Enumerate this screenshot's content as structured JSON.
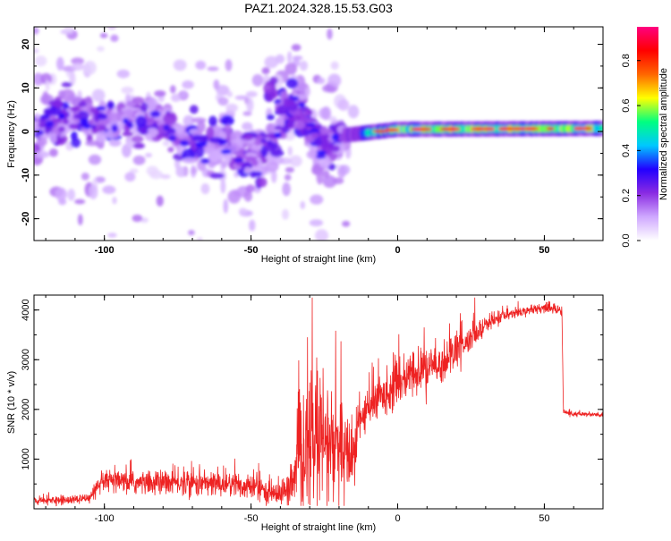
{
  "page": {
    "title": "PAZ1.2024.328.15.53.G03"
  },
  "chart_data": [
    {
      "type": "heatmap",
      "title": "PAZ1.2024.328.15.53.G03",
      "xlabel": "Height of straight line (km)",
      "ylabel": "Frequency (Hz)",
      "xlim": [
        -124,
        70
      ],
      "ylim": [
        -25,
        24
      ],
      "xticks_labeled": [
        -100,
        -50,
        0,
        50
      ],
      "yticks_labeled": [
        -20,
        -10,
        0,
        10,
        20
      ],
      "colorbar": {
        "label": "Normalized spectral amplitude",
        "range": [
          0,
          0.95
        ],
        "ticks": [
          0.0,
          0.2,
          0.4,
          0.6,
          0.8
        ],
        "tick_labels": [
          "0.0",
          "0.2",
          "0.4",
          "0.6",
          "0.8"
        ],
        "colormap": [
          "#ffffff",
          "#cfa8ff",
          "#8a2be2",
          "#2200ff",
          "#00c8ff",
          "#00ff80",
          "#ffff00",
          "#ff6600",
          "#ff0000",
          "#ff0080"
        ]
      },
      "ridge": {
        "description_values": [
          {
            "x": -120,
            "y": 3
          },
          {
            "x": -90,
            "y": 2
          },
          {
            "x": -60,
            "y": -3
          },
          {
            "x": -45,
            "y": -6
          },
          {
            "x": -35,
            "y": 7
          },
          {
            "x": -25,
            "y": -5
          },
          {
            "x": -20,
            "y": -1
          },
          {
            "x": 0,
            "y": 0.5
          },
          {
            "x": 70,
            "y": 0.7
          }
        ]
      },
      "grid": false
    },
    {
      "type": "line",
      "xlabel": "Height of straight line (km)",
      "ylabel": "SNR (10 * v/v)",
      "xlim": [
        -124,
        70
      ],
      "ylim": [
        0,
        4300
      ],
      "xticks_labeled": [
        -100,
        -50,
        0,
        50
      ],
      "yticks_labeled": [
        1000,
        2000,
        3000,
        4000
      ],
      "series": [
        {
          "color": "#ee2222",
          "x": [
            -124,
            -115,
            -105,
            -100,
            -90,
            -80,
            -70,
            -60,
            -50,
            -45,
            -40,
            -36,
            -33,
            -30,
            -27,
            -24,
            -21,
            -18,
            -15,
            -13,
            -10,
            -5,
            0,
            5,
            10,
            15,
            20,
            25,
            30,
            35,
            40,
            45,
            50,
            55,
            56,
            56.5,
            60,
            65,
            70
          ],
          "y": [
            150,
            170,
            200,
            550,
            520,
            520,
            520,
            500,
            450,
            350,
            300,
            450,
            1000,
            1400,
            1350,
            1300,
            1200,
            1000,
            1100,
            1800,
            2000,
            2300,
            2500,
            2700,
            2800,
            2900,
            3200,
            3400,
            3700,
            3850,
            3950,
            4000,
            4050,
            4000,
            3950,
            1950,
            1900,
            1900,
            1880
          ],
          "noise_amplitude": [
            80,
            100,
            120,
            250,
            260,
            280,
            300,
            300,
            350,
            220,
            300,
            400,
            1500,
            1700,
            1600,
            1500,
            1300,
            1100,
            800,
            400,
            450,
            500,
            500,
            550,
            500,
            450,
            400,
            300,
            200,
            150,
            120,
            100,
            100,
            100,
            100,
            60,
            60,
            60,
            60
          ]
        }
      ],
      "grid": false
    }
  ]
}
